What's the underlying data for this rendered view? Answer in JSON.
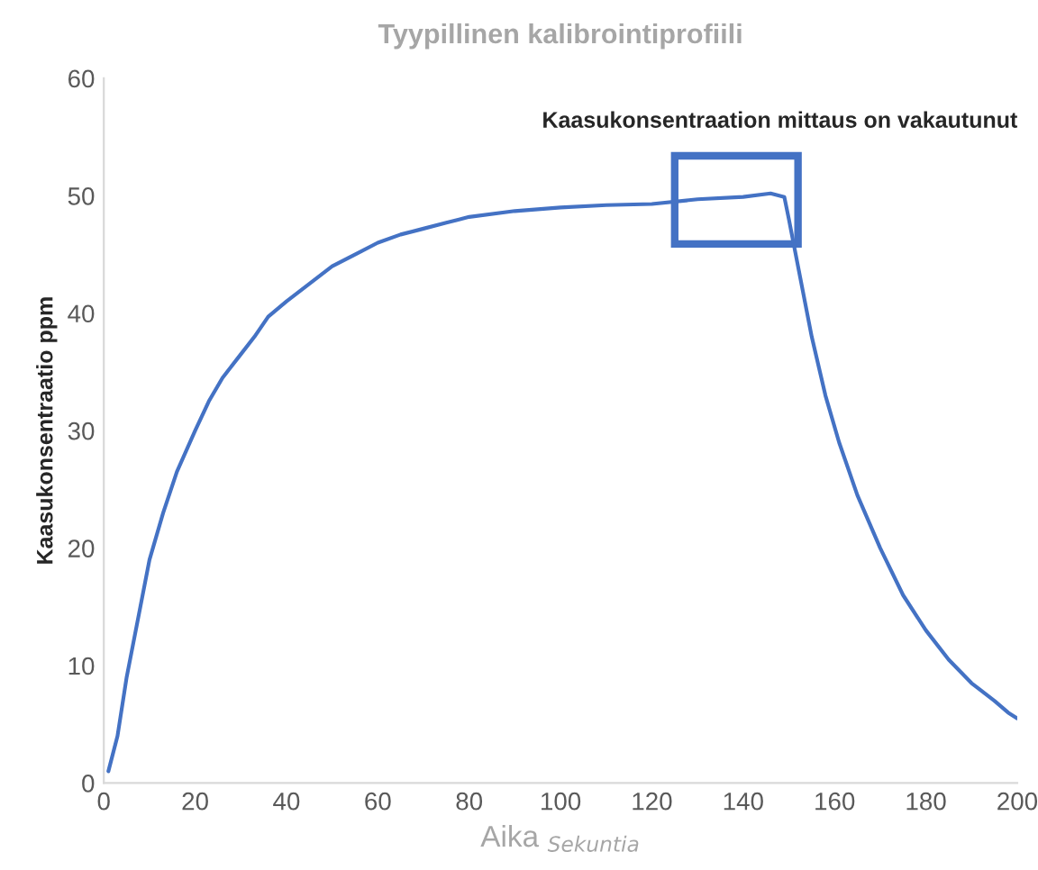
{
  "chart_data": {
    "type": "line",
    "title": "Tyypillinen kalibrointiprofiili",
    "xlabel": "Aika $_{Sekuntia}$",
    "ylabel": "Kaasukonsentraatio ppm",
    "x": [
      1,
      3,
      5,
      8,
      10,
      13,
      16,
      20,
      23,
      26,
      30,
      33,
      36,
      40,
      45,
      50,
      55,
      60,
      65,
      70,
      75,
      80,
      90,
      100,
      110,
      120,
      130,
      140,
      146,
      149,
      150,
      152,
      155,
      158,
      161,
      165,
      170,
      175,
      180,
      185,
      190,
      195,
      198,
      200
    ],
    "series": [
      {
        "color": "#4472c4",
        "values": [
          1,
          4,
          9,
          15,
          19,
          23,
          26.5,
          30,
          32.5,
          34.5,
          36.5,
          38,
          39.7,
          41,
          42.5,
          44,
          45,
          46,
          46.7,
          47.2,
          47.7,
          48.2,
          48.7,
          49,
          49.2,
          49.3,
          49.7,
          49.9,
          50.2,
          49.9,
          48,
          44,
          38,
          33,
          29,
          24.5,
          20,
          16,
          13,
          10.5,
          8.5,
          7,
          6,
          5.5
        ]
      }
    ],
    "xlim": [
      0,
      200
    ],
    "xticks": [
      0,
      20,
      40,
      60,
      80,
      100,
      120,
      140,
      160,
      180,
      200
    ],
    "ylim": [
      0,
      60
    ],
    "yticks": [
      0,
      10,
      20,
      30,
      40,
      50,
      60
    ],
    "annotations": [
      "Kaasukonsentraation mittaus on vakautunut"
    ],
    "grid": false,
    "legend": false
  }
}
